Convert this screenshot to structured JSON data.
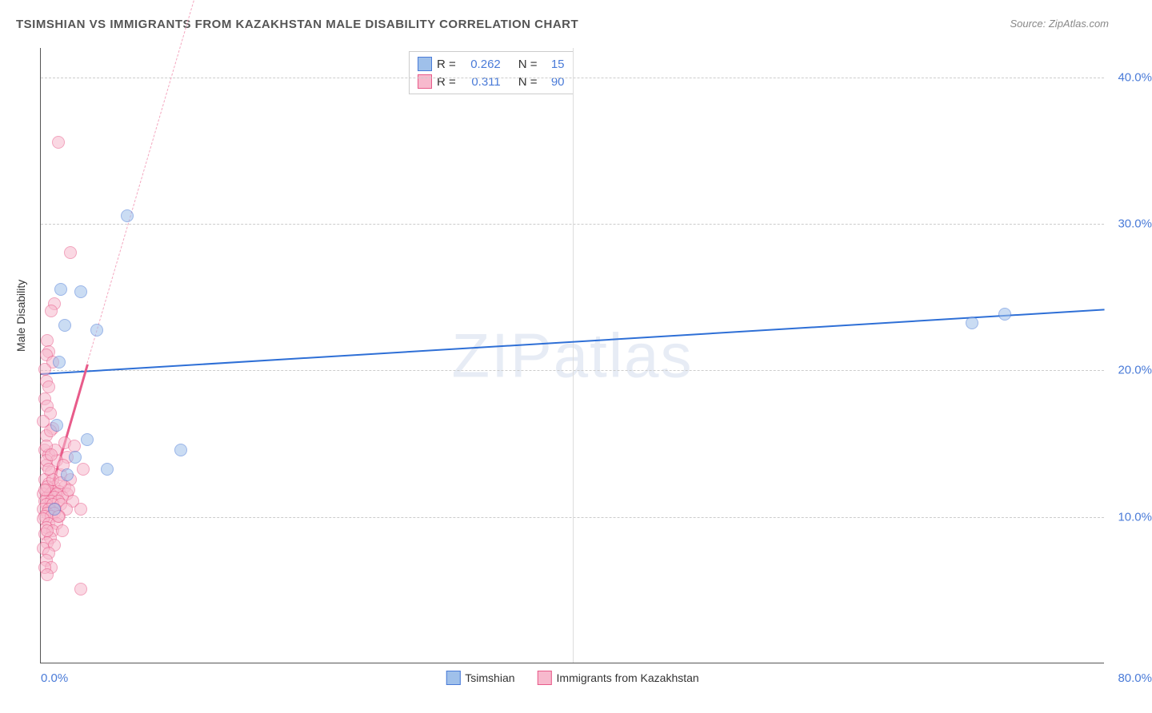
{
  "title": "TSIMSHIAN VS IMMIGRANTS FROM KAZAKHSTAN MALE DISABILITY CORRELATION CHART",
  "source": "Source: ZipAtlas.com",
  "watermark": "ZIPatlas",
  "y_axis_label": "Male Disability",
  "chart": {
    "type": "scatter",
    "background_color": "#ffffff",
    "grid_color": "#cccccc",
    "axis_color": "#555555",
    "xlim": [
      0,
      80
    ],
    "ylim": [
      0,
      42
    ],
    "y_ticks": [
      10,
      20,
      30,
      40
    ],
    "y_tick_labels": [
      "10.0%",
      "20.0%",
      "30.0%",
      "40.0%"
    ],
    "x_ticks": [
      40
    ],
    "x_tick_left": "0.0%",
    "x_tick_right": "80.0%",
    "marker_radius": 8,
    "marker_opacity": 0.55,
    "title_fontsize": 15,
    "label_fontsize": 14,
    "tick_fontsize": 15,
    "tick_color": "#4a7bd8"
  },
  "series": [
    {
      "name": "Tsimshian",
      "color_fill": "#9fc0ea",
      "color_stroke": "#4a7bd8",
      "r_value": "0.262",
      "n_value": "15",
      "trend": {
        "x1": 0,
        "y1": 19.8,
        "x2": 80,
        "y2": 24.2,
        "color": "#2e6fd6",
        "width": 2,
        "dash": false
      },
      "points": [
        {
          "x": 1.5,
          "y": 25.5
        },
        {
          "x": 3.0,
          "y": 25.3
        },
        {
          "x": 1.8,
          "y": 23.0
        },
        {
          "x": 4.2,
          "y": 22.7
        },
        {
          "x": 6.5,
          "y": 30.5
        },
        {
          "x": 1.2,
          "y": 16.2
        },
        {
          "x": 5.0,
          "y": 13.2
        },
        {
          "x": 2.6,
          "y": 14.0
        },
        {
          "x": 10.5,
          "y": 14.5
        },
        {
          "x": 1.0,
          "y": 10.5
        },
        {
          "x": 70.0,
          "y": 23.2
        },
        {
          "x": 72.5,
          "y": 23.8
        },
        {
          "x": 1.4,
          "y": 20.5
        },
        {
          "x": 2.0,
          "y": 12.8
        },
        {
          "x": 3.5,
          "y": 15.2
        }
      ]
    },
    {
      "name": "Immigrants from Kazakhstan",
      "color_fill": "#f7b9cd",
      "color_stroke": "#e85b8a",
      "r_value": "0.311",
      "n_value": "90",
      "trend": {
        "x1": 0.3,
        "y1": 10.5,
        "x2": 3.5,
        "y2": 20.5,
        "color": "#e85b8a",
        "width": 2.5,
        "dash": false
      },
      "trend_ext": {
        "x1": 3.5,
        "y1": 20.5,
        "x2": 15.0,
        "y2": 56.0,
        "color": "#f4a8c0",
        "width": 1,
        "dash": true
      },
      "points": [
        {
          "x": 1.3,
          "y": 35.5
        },
        {
          "x": 2.2,
          "y": 28.0
        },
        {
          "x": 1.0,
          "y": 24.5
        },
        {
          "x": 0.8,
          "y": 24.0
        },
        {
          "x": 0.5,
          "y": 22.0
        },
        {
          "x": 0.6,
          "y": 21.2
        },
        {
          "x": 0.4,
          "y": 21.0
        },
        {
          "x": 0.9,
          "y": 20.5
        },
        {
          "x": 0.3,
          "y": 20.0
        },
        {
          "x": 0.4,
          "y": 19.2
        },
        {
          "x": 0.6,
          "y": 18.8
        },
        {
          "x": 0.3,
          "y": 18.0
        },
        {
          "x": 0.5,
          "y": 17.5
        },
        {
          "x": 0.7,
          "y": 17.0
        },
        {
          "x": 0.2,
          "y": 16.5
        },
        {
          "x": 0.9,
          "y": 16.0
        },
        {
          "x": 0.4,
          "y": 15.5
        },
        {
          "x": 1.8,
          "y": 15.0
        },
        {
          "x": 2.5,
          "y": 14.8
        },
        {
          "x": 0.3,
          "y": 14.5
        },
        {
          "x": 0.6,
          "y": 14.2
        },
        {
          "x": 2.0,
          "y": 14.0
        },
        {
          "x": 1.2,
          "y": 13.8
        },
        {
          "x": 0.4,
          "y": 13.5
        },
        {
          "x": 3.2,
          "y": 13.2
        },
        {
          "x": 0.8,
          "y": 13.0
        },
        {
          "x": 1.5,
          "y": 12.8
        },
        {
          "x": 0.3,
          "y": 12.5
        },
        {
          "x": 2.2,
          "y": 12.5
        },
        {
          "x": 0.6,
          "y": 12.2
        },
        {
          "x": 1.0,
          "y": 12.0
        },
        {
          "x": 1.8,
          "y": 12.0
        },
        {
          "x": 0.4,
          "y": 11.8
        },
        {
          "x": 0.9,
          "y": 11.7
        },
        {
          "x": 1.4,
          "y": 11.7
        },
        {
          "x": 0.2,
          "y": 11.5
        },
        {
          "x": 0.7,
          "y": 11.5
        },
        {
          "x": 1.2,
          "y": 11.5
        },
        {
          "x": 2.0,
          "y": 11.5
        },
        {
          "x": 0.5,
          "y": 11.3
        },
        {
          "x": 1.0,
          "y": 11.3
        },
        {
          "x": 1.6,
          "y": 11.3
        },
        {
          "x": 0.3,
          "y": 11.0
        },
        {
          "x": 0.8,
          "y": 11.0
        },
        {
          "x": 1.3,
          "y": 11.0
        },
        {
          "x": 2.4,
          "y": 11.0
        },
        {
          "x": 0.4,
          "y": 10.8
        },
        {
          "x": 0.9,
          "y": 10.8
        },
        {
          "x": 1.5,
          "y": 10.8
        },
        {
          "x": 0.2,
          "y": 10.5
        },
        {
          "x": 0.6,
          "y": 10.5
        },
        {
          "x": 1.1,
          "y": 10.5
        },
        {
          "x": 1.9,
          "y": 10.5
        },
        {
          "x": 3.0,
          "y": 10.5
        },
        {
          "x": 0.5,
          "y": 10.2
        },
        {
          "x": 1.0,
          "y": 10.2
        },
        {
          "x": 0.3,
          "y": 10.0
        },
        {
          "x": 0.8,
          "y": 10.0
        },
        {
          "x": 1.4,
          "y": 10.0
        },
        {
          "x": 0.2,
          "y": 9.8
        },
        {
          "x": 0.6,
          "y": 9.5
        },
        {
          "x": 1.2,
          "y": 9.5
        },
        {
          "x": 0.4,
          "y": 9.2
        },
        {
          "x": 0.9,
          "y": 9.0
        },
        {
          "x": 1.6,
          "y": 9.0
        },
        {
          "x": 0.3,
          "y": 8.8
        },
        {
          "x": 0.7,
          "y": 8.5
        },
        {
          "x": 0.5,
          "y": 8.2
        },
        {
          "x": 1.0,
          "y": 8.0
        },
        {
          "x": 0.2,
          "y": 7.8
        },
        {
          "x": 0.6,
          "y": 7.5
        },
        {
          "x": 0.4,
          "y": 7.0
        },
        {
          "x": 0.8,
          "y": 6.5
        },
        {
          "x": 0.3,
          "y": 6.5
        },
        {
          "x": 0.5,
          "y": 6.0
        },
        {
          "x": 3.0,
          "y": 5.0
        },
        {
          "x": 0.4,
          "y": 13.8
        },
        {
          "x": 1.1,
          "y": 14.5
        },
        {
          "x": 0.7,
          "y": 15.8
        },
        {
          "x": 0.5,
          "y": 12.0
        },
        {
          "x": 1.3,
          "y": 10.0
        },
        {
          "x": 0.9,
          "y": 12.5
        },
        {
          "x": 0.3,
          "y": 11.8
        },
        {
          "x": 1.7,
          "y": 13.5
        },
        {
          "x": 0.6,
          "y": 13.2
        },
        {
          "x": 0.4,
          "y": 14.8
        },
        {
          "x": 2.1,
          "y": 11.8
        },
        {
          "x": 0.8,
          "y": 14.2
        },
        {
          "x": 1.5,
          "y": 12.3
        },
        {
          "x": 0.5,
          "y": 9.0
        }
      ]
    }
  ],
  "legend_stats": {
    "r_label": "R =",
    "n_label": "N ="
  },
  "bottom_legend": {
    "item1": "Tsimshian",
    "item2": "Immigrants from Kazakhstan"
  }
}
